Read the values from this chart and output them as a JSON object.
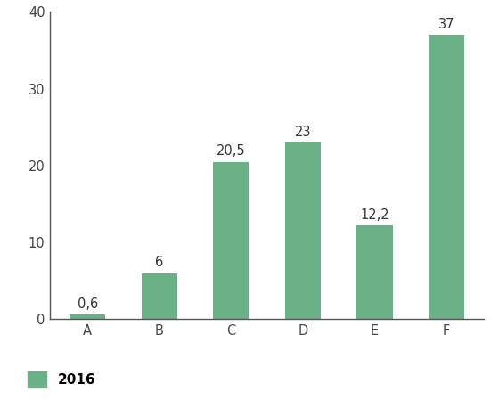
{
  "categories": [
    "A",
    "B",
    "C",
    "D",
    "E",
    "F"
  ],
  "values": [
    0.6,
    6,
    20.5,
    23,
    12.2,
    37
  ],
  "labels": [
    "0,6",
    "6",
    "20,5",
    "23",
    "12,2",
    "37"
  ],
  "bar_color": "#6ab187",
  "ylim": [
    0,
    40
  ],
  "yticks": [
    0,
    10,
    20,
    30,
    40
  ],
  "legend_label": "2016",
  "legend_color": "#6ab187",
  "label_fontsize": 10.5,
  "tick_fontsize": 10.5,
  "legend_fontsize": 11,
  "bar_width": 0.5
}
